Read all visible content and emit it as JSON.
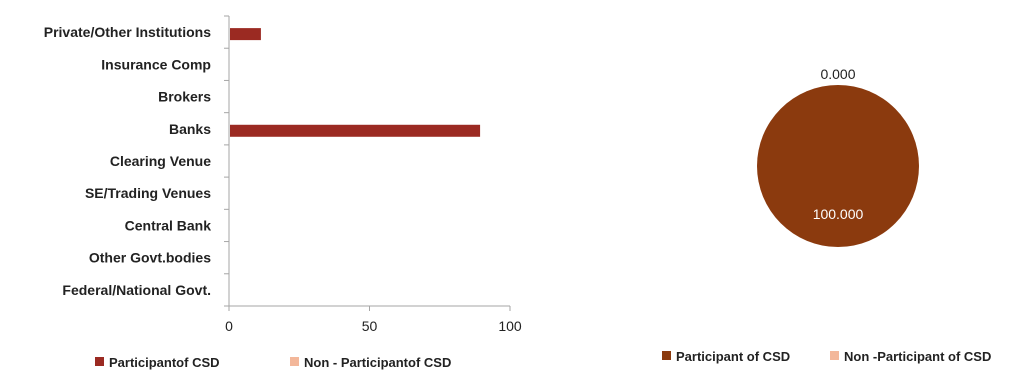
{
  "chart_data": [
    {
      "type": "bar",
      "orientation": "horizontal",
      "categories": [
        "Private/Other Institutions",
        "Insurance Comp",
        "Brokers",
        "Banks",
        "Clearing Venue",
        "SE/Trading Venues",
        "Central Bank",
        "Other Govt.bodies",
        "Federal/National Govt."
      ],
      "series": [
        {
          "name": "Participantof CSD",
          "color": "#9b2a22",
          "values": [
            11,
            0,
            0,
            89,
            0,
            0,
            0,
            0,
            0
          ]
        },
        {
          "name": "Non - Participantof CSD",
          "color": "#f3b79a",
          "values": [
            0,
            0,
            0,
            0,
            0,
            0,
            0,
            0,
            0
          ]
        }
      ],
      "xlim": [
        0,
        100
      ],
      "x_ticks": [
        "0",
        "50",
        "100"
      ],
      "grid": false,
      "legend_position": "bottom"
    },
    {
      "type": "pie",
      "slices": [
        {
          "name": "Participant of CSD",
          "value": 100.0,
          "label": "100.000",
          "color": "#8b3a0e"
        },
        {
          "name": "Non -Participant of CSD",
          "value": 0.0,
          "label": "0.000",
          "color": "#f3b79a"
        }
      ],
      "legend_position": "bottom"
    }
  ]
}
